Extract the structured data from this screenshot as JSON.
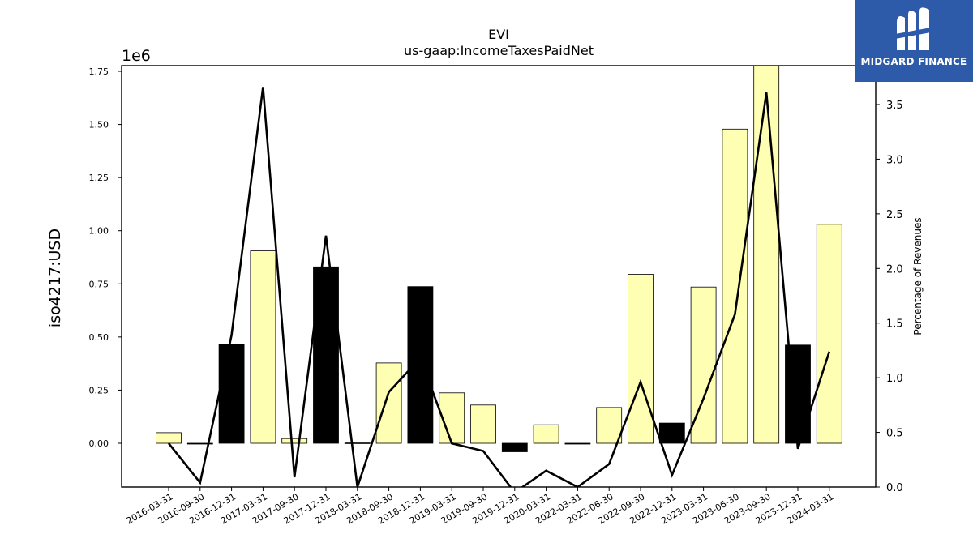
{
  "chart_data": {
    "type": "bar",
    "title": "EVI",
    "subtitle": "us-gaap:IncomeTaxesPaidNet",
    "ylabel": "iso4217:USD",
    "y_scale_label": "1e6",
    "y2label": "Percentage of Revenues",
    "ylim": [
      -200000,
      1780000
    ],
    "y2lim": [
      0.0,
      3.9
    ],
    "yticks": [
      "0.00",
      "0.25",
      "0.50",
      "0.75",
      "1.00",
      "1.25",
      "1.50",
      "1.75"
    ],
    "ytick_values": [
      0,
      250000,
      500000,
      750000,
      1000000,
      1250000,
      1500000,
      1750000
    ],
    "y2ticks": [
      "0.0",
      "0.5",
      "1.0",
      "1.5",
      "2.0",
      "2.5",
      "3.0",
      "3.5"
    ],
    "y2tick_values": [
      0.0,
      0.5,
      1.0,
      1.5,
      2.0,
      2.5,
      3.0,
      3.5
    ],
    "categories": [
      "2016-03-31",
      "2016-09-30",
      "2016-12-31",
      "2017-03-31",
      "2017-09-30",
      "2017-12-31",
      "2018-03-31",
      "2018-09-30",
      "2018-12-31",
      "2019-03-31",
      "2019-09-30",
      "2019-12-31",
      "2020-03-31",
      "2022-03-31",
      "2022-06-30",
      "2022-09-30",
      "2022-12-31",
      "2023-03-31",
      "2023-06-30",
      "2023-09-30",
      "2023-12-31",
      "2024-03-31"
    ],
    "series": [
      {
        "type": "bar",
        "values": [
          50000,
          -3000,
          465000,
          905000,
          22000,
          830000,
          2000,
          378000,
          737000,
          237000,
          180000,
          -40000,
          87000,
          -3000,
          168000,
          795000,
          95000,
          735000,
          1478000,
          1780000,
          462000,
          1030000
        ],
        "colors": [
          "#ffffb3",
          "#000000",
          "#000000",
          "#ffffb3",
          "#ffffb3",
          "#000000",
          "#ffffb3",
          "#ffffb3",
          "#000000",
          "#ffffb3",
          "#ffffb3",
          "#000000",
          "#ffffb3",
          "#000000",
          "#ffffb3",
          "#ffffb3",
          "#000000",
          "#ffffb3",
          "#ffffb3",
          "#ffffb3",
          "#000000",
          "#ffffb3"
        ]
      },
      {
        "type": "line",
        "axis": "right",
        "values": [
          0.4,
          0.04,
          1.39,
          3.66,
          0.09,
          2.3,
          0.0,
          0.87,
          1.18,
          0.4,
          0.33,
          -0.05,
          0.15,
          0.0,
          0.21,
          0.96,
          0.11,
          0.81,
          1.58,
          3.61,
          0.35,
          1.24
        ],
        "color": "#000000"
      }
    ],
    "grid": false
  },
  "logo": {
    "text": "MIDGARD FINANCE"
  }
}
